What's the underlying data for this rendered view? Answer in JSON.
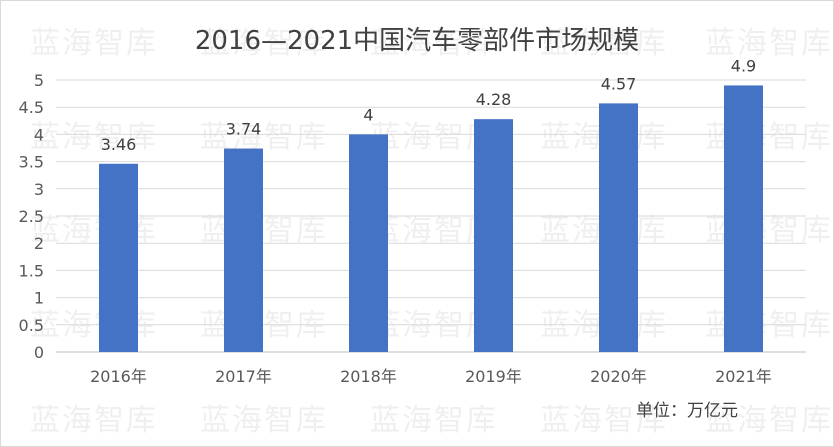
{
  "chart_data": {
    "type": "bar",
    "title": "2016—2021中国汽车零部件市场规模",
    "categories": [
      "2016年",
      "2017年",
      "2018年",
      "2019年",
      "2020年",
      "2021年"
    ],
    "values": [
      3.46,
      3.74,
      4,
      4.28,
      4.57,
      4.9
    ],
    "data_labels": [
      "3.46",
      "3.74",
      "4",
      "4.28",
      "4.57",
      "4.9"
    ],
    "ylim": [
      0,
      5
    ],
    "yticks": [
      "0",
      "0.5",
      "1",
      "1.5",
      "2",
      "2.5",
      "3",
      "3.5",
      "4",
      "4.5",
      "5"
    ],
    "grid": true,
    "bar_color": "#4472c4",
    "unit_note": "单位：万亿元"
  },
  "watermark": "蓝海智库"
}
